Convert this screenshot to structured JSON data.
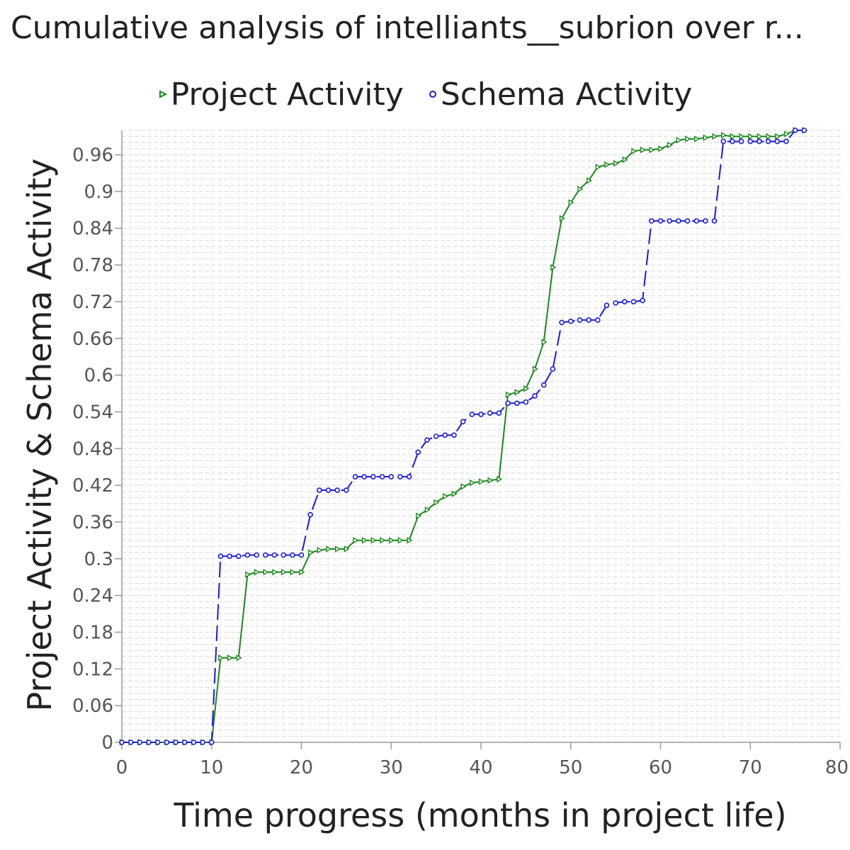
{
  "chart_data": {
    "type": "line",
    "title": "Cumulative analysis of intelliants__subrion over r...",
    "xlabel": "Time progress (months in project life)",
    "ylabel": "Project Activity & Schema Activity",
    "xlim": [
      0,
      80
    ],
    "ylim": [
      0,
      1.0
    ],
    "x_ticks": [
      0,
      10,
      20,
      30,
      40,
      50,
      60,
      70,
      80
    ],
    "y_ticks": [
      0,
      0.06,
      0.12,
      0.18,
      0.24,
      0.3,
      0.36,
      0.42,
      0.48,
      0.54,
      0.6,
      0.66,
      0.72,
      0.78,
      0.84,
      0.9,
      0.96
    ],
    "y_tick_labels": [
      "0",
      "0.06",
      "0.12",
      "0.18",
      "0.24",
      "0.3",
      "0.36",
      "0.42",
      "0.48",
      "0.54",
      "0.6",
      "0.66",
      "0.72",
      "0.78",
      "0.84",
      "0.9",
      "0.96"
    ],
    "grid": true,
    "legend_position": "top-center",
    "series": [
      {
        "name": "Project Activity",
        "color": "#1a8a1a",
        "line_style": "solid",
        "marker": "triangle-right",
        "points": [
          [
            0,
            0
          ],
          [
            1,
            0
          ],
          [
            2,
            0
          ],
          [
            3,
            0
          ],
          [
            4,
            0
          ],
          [
            5,
            0
          ],
          [
            6,
            0
          ],
          [
            7,
            0
          ],
          [
            8,
            0
          ],
          [
            9,
            0
          ],
          [
            10,
            0
          ],
          [
            11,
            0.138
          ],
          [
            12,
            0.138
          ],
          [
            13,
            0.138
          ],
          [
            14,
            0.274
          ],
          [
            15,
            0.278
          ],
          [
            16,
            0.278
          ],
          [
            17,
            0.278
          ],
          [
            18,
            0.278
          ],
          [
            19,
            0.278
          ],
          [
            20,
            0.278
          ],
          [
            21,
            0.31
          ],
          [
            22,
            0.314
          ],
          [
            23,
            0.316
          ],
          [
            24,
            0.316
          ],
          [
            25,
            0.316
          ],
          [
            26,
            0.33
          ],
          [
            27,
            0.33
          ],
          [
            28,
            0.33
          ],
          [
            29,
            0.33
          ],
          [
            30,
            0.33
          ],
          [
            31,
            0.33
          ],
          [
            32,
            0.33
          ],
          [
            33,
            0.37
          ],
          [
            34,
            0.38
          ],
          [
            35,
            0.392
          ],
          [
            36,
            0.402
          ],
          [
            37,
            0.406
          ],
          [
            38,
            0.418
          ],
          [
            39,
            0.424
          ],
          [
            40,
            0.426
          ],
          [
            41,
            0.428
          ],
          [
            42,
            0.43
          ],
          [
            43,
            0.568
          ],
          [
            44,
            0.572
          ],
          [
            45,
            0.578
          ],
          [
            46,
            0.61
          ],
          [
            47,
            0.654
          ],
          [
            48,
            0.776
          ],
          [
            49,
            0.856
          ],
          [
            50,
            0.882
          ],
          [
            51,
            0.904
          ],
          [
            52,
            0.918
          ],
          [
            53,
            0.94
          ],
          [
            54,
            0.944
          ],
          [
            55,
            0.946
          ],
          [
            56,
            0.952
          ],
          [
            57,
            0.966
          ],
          [
            58,
            0.968
          ],
          [
            59,
            0.968
          ],
          [
            60,
            0.97
          ],
          [
            61,
            0.976
          ],
          [
            62,
            0.984
          ],
          [
            63,
            0.986
          ],
          [
            64,
            0.986
          ],
          [
            65,
            0.988
          ],
          [
            66,
            0.99
          ],
          [
            67,
            0.992
          ],
          [
            68,
            0.99
          ],
          [
            69,
            0.99
          ],
          [
            70,
            0.99
          ],
          [
            71,
            0.99
          ],
          [
            72,
            0.99
          ],
          [
            73,
            0.99
          ],
          [
            74,
            0.994
          ],
          [
            75,
            1.0
          ],
          [
            76,
            1.0
          ]
        ]
      },
      {
        "name": "Schema Activity",
        "color": "#1a1adf",
        "line_style": "dashed",
        "marker": "circle",
        "points": [
          [
            0,
            0
          ],
          [
            1,
            0
          ],
          [
            2,
            0
          ],
          [
            3,
            0
          ],
          [
            4,
            0
          ],
          [
            5,
            0
          ],
          [
            6,
            0
          ],
          [
            7,
            0
          ],
          [
            8,
            0
          ],
          [
            9,
            0
          ],
          [
            10,
            0
          ],
          [
            11,
            0.304
          ],
          [
            12,
            0.304
          ],
          [
            13,
            0.304
          ],
          [
            14,
            0.306
          ],
          [
            15,
            0.306
          ],
          [
            16,
            0.306
          ],
          [
            17,
            0.306
          ],
          [
            18,
            0.306
          ],
          [
            19,
            0.306
          ],
          [
            20,
            0.306
          ],
          [
            21,
            0.372
          ],
          [
            22,
            0.412
          ],
          [
            23,
            0.412
          ],
          [
            24,
            0.412
          ],
          [
            25,
            0.412
          ],
          [
            26,
            0.434
          ],
          [
            27,
            0.434
          ],
          [
            28,
            0.434
          ],
          [
            29,
            0.434
          ],
          [
            30,
            0.434
          ],
          [
            31,
            0.434
          ],
          [
            32,
            0.434
          ],
          [
            33,
            0.474
          ],
          [
            34,
            0.494
          ],
          [
            35,
            0.5
          ],
          [
            36,
            0.502
          ],
          [
            37,
            0.502
          ],
          [
            38,
            0.524
          ],
          [
            39,
            0.536
          ],
          [
            40,
            0.536
          ],
          [
            41,
            0.538
          ],
          [
            42,
            0.538
          ],
          [
            43,
            0.554
          ],
          [
            44,
            0.554
          ],
          [
            45,
            0.556
          ],
          [
            46,
            0.566
          ],
          [
            47,
            0.584
          ],
          [
            48,
            0.61
          ],
          [
            49,
            0.686
          ],
          [
            50,
            0.688
          ],
          [
            51,
            0.69
          ],
          [
            52,
            0.69
          ],
          [
            53,
            0.69
          ],
          [
            54,
            0.714
          ],
          [
            55,
            0.718
          ],
          [
            56,
            0.72
          ],
          [
            57,
            0.72
          ],
          [
            58,
            0.722
          ],
          [
            59,
            0.852
          ],
          [
            60,
            0.852
          ],
          [
            61,
            0.852
          ],
          [
            62,
            0.852
          ],
          [
            63,
            0.852
          ],
          [
            64,
            0.852
          ],
          [
            65,
            0.852
          ],
          [
            66,
            0.852
          ],
          [
            67,
            0.982
          ],
          [
            68,
            0.982
          ],
          [
            69,
            0.982
          ],
          [
            70,
            0.982
          ],
          [
            71,
            0.982
          ],
          [
            72,
            0.982
          ],
          [
            73,
            0.982
          ],
          [
            74,
            0.982
          ],
          [
            75,
            1.0
          ],
          [
            76,
            1.0
          ]
        ]
      }
    ]
  }
}
